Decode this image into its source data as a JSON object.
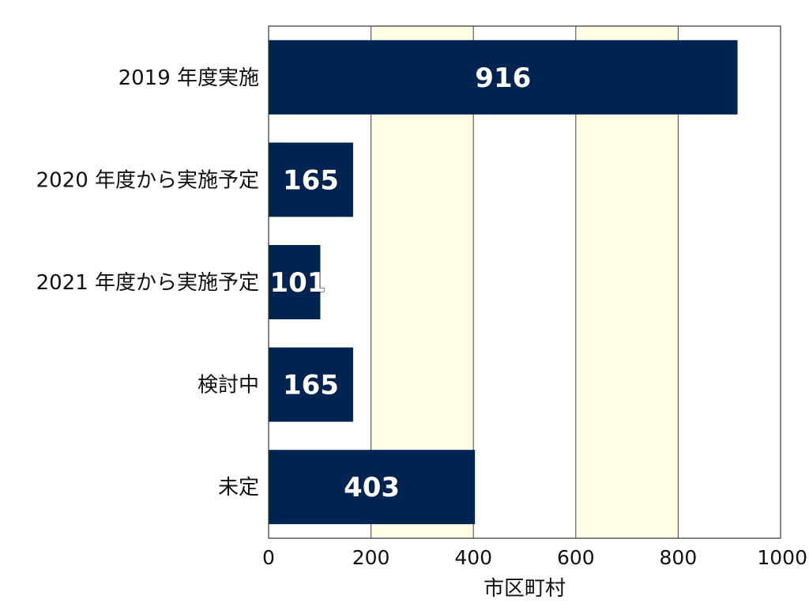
{
  "chart_data": {
    "type": "bar",
    "orientation": "horizontal",
    "categories": [
      "2019 年度実施",
      "2020 年度から実施予定",
      "2021 年度から実施予定",
      "検討中",
      "未定"
    ],
    "values": [
      916,
      165,
      101,
      165,
      403
    ],
    "xlabel": "市区町村",
    "ylabel": "",
    "xlim": [
      0,
      1000
    ],
    "xticks": [
      "0",
      "200",
      "400",
      "600",
      "800",
      "1000"
    ],
    "data_labels": [
      "916",
      "165",
      "101",
      "165",
      "403"
    ],
    "grid": true,
    "colors": {
      "bar": "#002452",
      "band": "#fffde3",
      "grid": "#444444",
      "frame": "#333333"
    },
    "shaded_bands": [
      [
        200,
        400
      ],
      [
        600,
        800
      ]
    ]
  }
}
